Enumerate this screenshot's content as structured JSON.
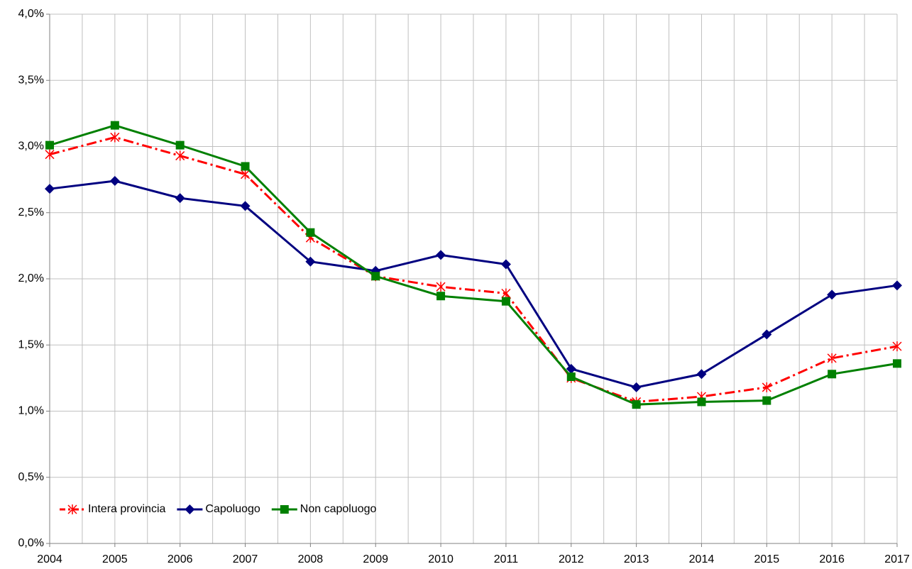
{
  "chart_data": {
    "type": "line",
    "categories": [
      "2004",
      "2005",
      "2006",
      "2007",
      "2008",
      "2009",
      "2010",
      "2011",
      "2012",
      "2013",
      "2014",
      "2015",
      "2016",
      "2017"
    ],
    "ylim": [
      0,
      4.0
    ],
    "yticks": [
      {
        "value": 0,
        "label": "0,0%"
      },
      {
        "value": 0.5,
        "label": "0,5%"
      },
      {
        "value": 1.0,
        "label": "1,0%"
      },
      {
        "value": 1.5,
        "label": "1,5%"
      },
      {
        "value": 2.0,
        "label": "2,0%"
      },
      {
        "value": 2.5,
        "label": "2,5%"
      },
      {
        "value": 3.0,
        "label": "3,0%"
      },
      {
        "value": 3.5,
        "label": "3,5%"
      },
      {
        "value": 4.0,
        "label": "4,0%"
      }
    ],
    "grid": true,
    "legend": "lower left",
    "series": [
      {
        "name": "Intera provincia",
        "color": "#ff0000",
        "marker": "star",
        "dash": "dashdot",
        "values": [
          2.94,
          3.07,
          2.93,
          2.79,
          2.31,
          2.02,
          1.94,
          1.89,
          1.25,
          1.07,
          1.11,
          1.18,
          1.4,
          1.49
        ]
      },
      {
        "name": "Capoluogo",
        "color": "#000080",
        "marker": "diamond",
        "dash": "solid",
        "values": [
          2.68,
          2.74,
          2.61,
          2.55,
          2.13,
          2.06,
          2.18,
          2.11,
          1.32,
          1.18,
          1.28,
          1.58,
          1.88,
          1.95
        ]
      },
      {
        "name": "Non capoluogo",
        "color": "#008000",
        "marker": "square",
        "dash": "solid",
        "values": [
          3.01,
          3.16,
          3.01,
          2.85,
          2.35,
          2.02,
          1.87,
          1.83,
          1.26,
          1.05,
          1.07,
          1.08,
          1.28,
          1.36
        ]
      }
    ]
  }
}
